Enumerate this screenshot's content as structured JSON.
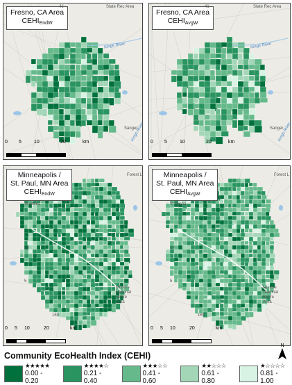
{
  "panels": [
    {
      "id": "fresno-endw",
      "title_lines": [
        "Fresno, CA Area"
      ],
      "index_base": "CEHI",
      "index_sub": "EndW",
      "places": [
        "Sanger"
      ],
      "rivers": [
        "Kings River",
        "Kings River"
      ],
      "road_labels": [
        "41",
        "State Rec Area"
      ],
      "scale": [
        "0",
        "5",
        "10",
        "20",
        "km"
      ]
    },
    {
      "id": "fresno-avgw",
      "title_lines": [
        "Fresno, CA Area"
      ],
      "index_base": "CEHI",
      "index_sub": "AvgW",
      "places": [
        "Sanger"
      ],
      "rivers": [
        "Kings River",
        "Kings River"
      ],
      "road_labels": [
        "41",
        "State Rec Area"
      ],
      "scale": [
        "0",
        "5",
        "10",
        "20",
        "km"
      ]
    },
    {
      "id": "mn-endw",
      "title_lines": [
        "Minneapolis /",
        "St. Paul, MN Area"
      ],
      "index_base": "CEHI",
      "index_sub": "EndW",
      "places": [
        "Forest L",
        "St Micha",
        "Mississ",
        "National",
        "Recre",
        "Area"
      ],
      "road_labels": [
        "12",
        "5",
        "169"
      ],
      "scale": [
        "0",
        "5",
        "10",
        "20",
        "km"
      ]
    },
    {
      "id": "mn-avgw",
      "title_lines": [
        "Minneapolis /",
        "St. Paul, MN Area"
      ],
      "index_base": "CEHI",
      "index_sub": "AvgW",
      "places": [
        "Forest L",
        "St Micha",
        "Mississ",
        "National",
        "Recre",
        "Area"
      ],
      "road_labels": [
        "12",
        "5",
        "169"
      ],
      "scale": [
        "0",
        "5",
        "10",
        "20",
        "km"
      ]
    }
  ],
  "north_label": "N",
  "legend": {
    "title": "Community EcoHealth Index (CEHI)",
    "items": [
      {
        "stars": "★★★★★",
        "range": "0.00 - 0.20",
        "color": "#00703c"
      },
      {
        "stars": "★★★★☆",
        "range": "0.21 - 0.40",
        "color": "#2a9460"
      },
      {
        "stars": "★★★☆☆",
        "range": "0.41 - 0.60",
        "color": "#66b98b"
      },
      {
        "stars": "★★☆☆☆",
        "range": "0.61 - 0.80",
        "color": "#a3d6b7"
      },
      {
        "stars": "★☆☆☆☆",
        "range": "0.81 - 1.00",
        "color": "#d8f2e3"
      }
    ]
  }
}
